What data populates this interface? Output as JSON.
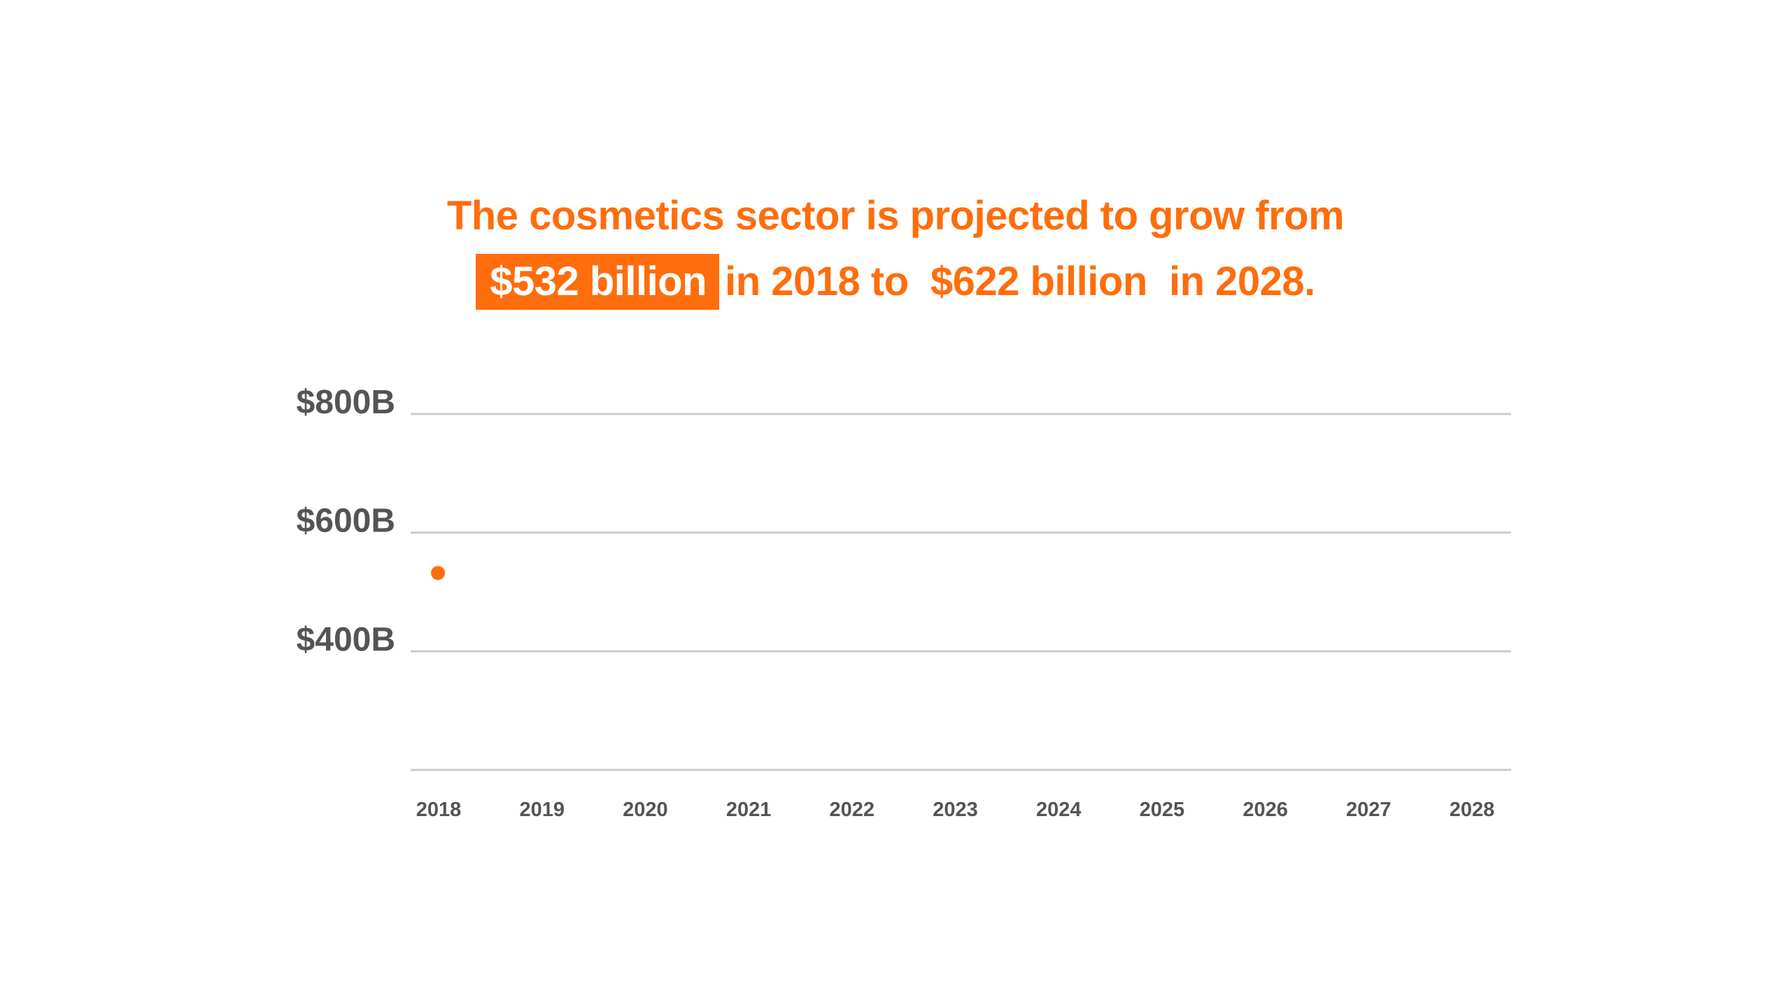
{
  "headline": {
    "line1": "The cosmetics sector is projected to grow from",
    "highlight": "$532 billion",
    "line2_a": "in 2018 to",
    "value_2028": "$622 billion",
    "line2_b": "in 2028."
  },
  "colors": {
    "accent": "#ff6d0c",
    "text": "#545454",
    "grid": "#cccccc"
  },
  "chart_data": {
    "type": "scatter",
    "x": [
      2018
    ],
    "y": [
      532
    ],
    "categories": [
      "2018",
      "2019",
      "2020",
      "2021",
      "2022",
      "2023",
      "2024",
      "2025",
      "2026",
      "2027",
      "2028"
    ],
    "yticks": [
      {
        "value": 400,
        "label": "$400B"
      },
      {
        "value": 600,
        "label": "$600B"
      },
      {
        "value": 800,
        "label": "$800B"
      }
    ],
    "ylim": [
      200,
      800
    ],
    "grid": true,
    "legend": "none",
    "title": "",
    "xlabel": "",
    "ylabel": ""
  }
}
